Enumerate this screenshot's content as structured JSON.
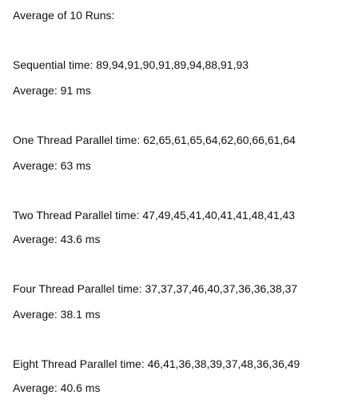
{
  "header": "Average of 10 Runs:",
  "results": [
    {
      "label": "Sequential time: 89,94,91,90,91,89,94,88,91,93",
      "average": "Average: 91 ms"
    },
    {
      "label": "One Thread Parallel time: 62,65,61,65,64,62,60,66,61,64",
      "average": "Average: 63 ms"
    },
    {
      "label": "Two Thread Parallel time: 47,49,45,41,40,41,41,48,41,43",
      "average": "Average: 43.6 ms"
    },
    {
      "label": "Four Thread Parallel time: 37,37,37,46,40,37,36,36,38,37",
      "average": "Average: 38.1 ms"
    },
    {
      "label": "Eight Thread Parallel time: 46,41,36,38,39,37,48,36,36,49",
      "average": "Average: 40.6 ms"
    }
  ]
}
